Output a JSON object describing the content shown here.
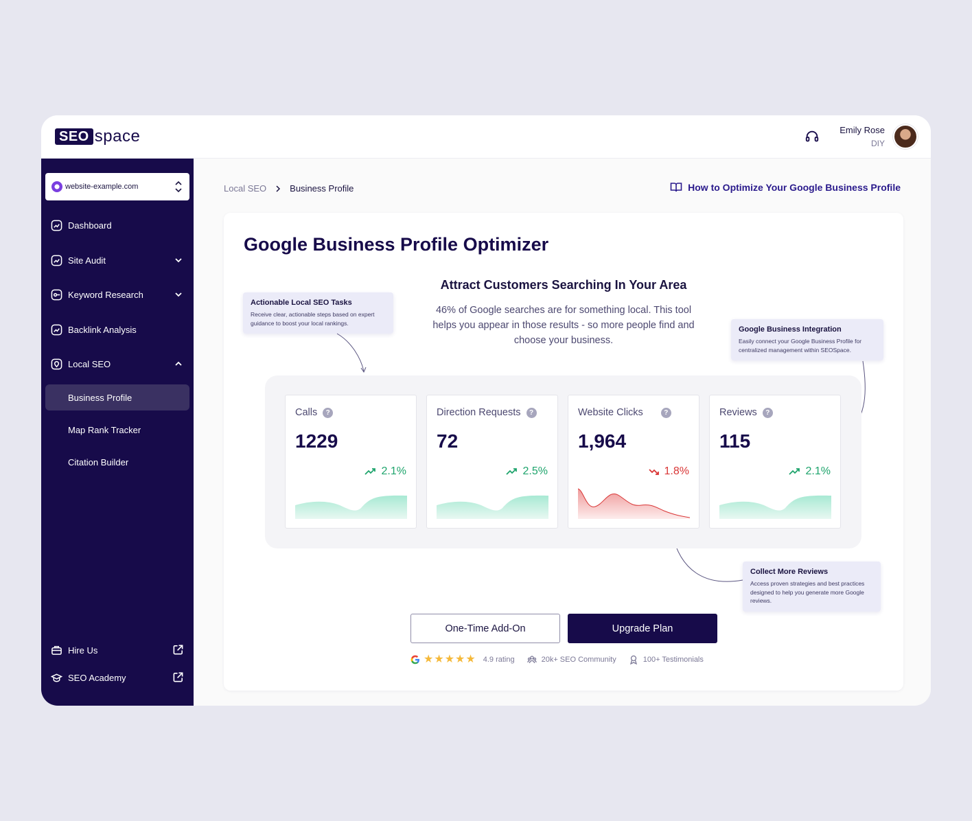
{
  "brand": {
    "logo_box": "SEO",
    "logo_text": "space"
  },
  "user": {
    "name": "Emily Rose",
    "role": "DIY"
  },
  "site_selector": {
    "value": "website-example.com"
  },
  "sidebar": {
    "items": [
      {
        "label": "Dashboard"
      },
      {
        "label": "Site Audit"
      },
      {
        "label": "Keyword Research"
      },
      {
        "label": "Backlink Analysis"
      },
      {
        "label": "Local SEO"
      }
    ],
    "sub_items": [
      {
        "label": "Business Profile",
        "active": true
      },
      {
        "label": "Map Rank Tracker"
      },
      {
        "label": "Citation Builder"
      }
    ],
    "footer": [
      {
        "label": "Hire Us"
      },
      {
        "label": "SEO Academy"
      }
    ]
  },
  "breadcrumb": {
    "parent": "Local SEO",
    "current": "Business Profile"
  },
  "guide_link": "How to Optimize Your Google Business Profile",
  "card": {
    "title": "Google Business Profile Optimizer",
    "subtitle": "Attract Customers Searching In Your Area",
    "body": "46% of Google searches are for something local. This tool helps you appear in those results - so more people find and choose your business."
  },
  "tips": [
    {
      "title": "Actionable Local SEO Tasks",
      "body": "Receive clear, actionable steps based on expert guidance to boost your local rankings."
    },
    {
      "title": "Google Business Integration",
      "body": "Easily connect your Google Business Profile for centralized management within SEOSpace."
    },
    {
      "title": "Collect More Reviews",
      "body": "Access proven strategies and best practices designed to help you generate more Google reviews."
    }
  ],
  "stats": [
    {
      "label": "Calls",
      "value": "1229",
      "trend": "2.1%",
      "direction": "up"
    },
    {
      "label": "Direction Requests",
      "value": "72",
      "trend": "2.5%",
      "direction": "up"
    },
    {
      "label": "Website Clicks",
      "value": "1,964",
      "trend": "1.8%",
      "direction": "down"
    },
    {
      "label": "Reviews",
      "value": "115",
      "trend": "2.1%",
      "direction": "up"
    }
  ],
  "buttons": {
    "addon": "One-Time Add-On",
    "upgrade": "Upgrade Plan"
  },
  "trust": {
    "rating": "4.9 rating",
    "community": "20k+ SEO Community",
    "testimonials": "100+ Testimonials"
  },
  "colors": {
    "brand": "#170b4a",
    "up": "#1ea46c",
    "down": "#d93636",
    "tip_bg": "#ebebf8"
  }
}
